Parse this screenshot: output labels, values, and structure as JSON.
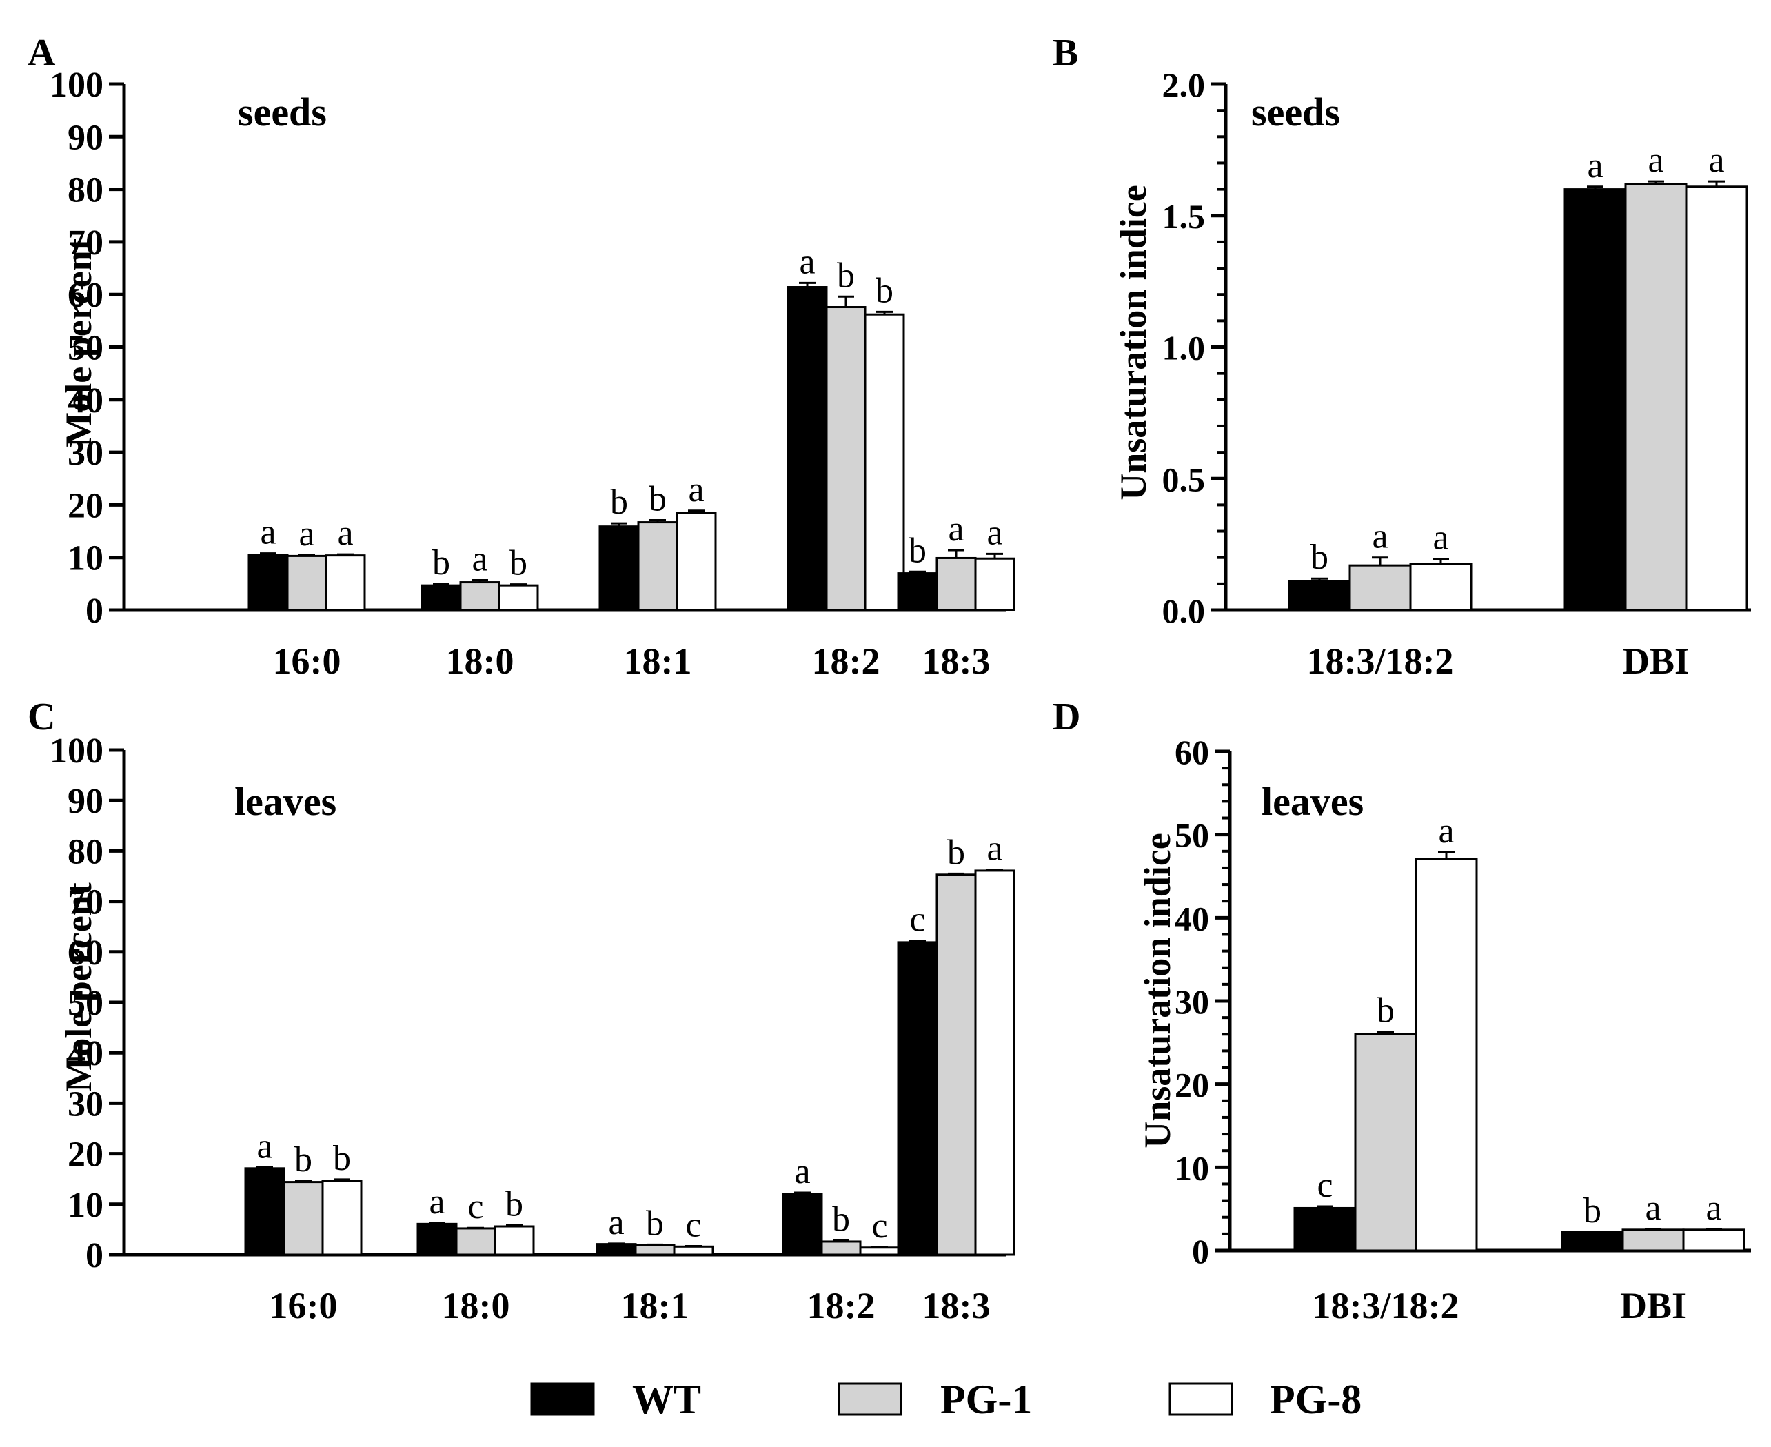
{
  "figure": {
    "legend": [
      {
        "name": "WT",
        "fill": "#000000"
      },
      {
        "name": "PG-1",
        "fill": "#d3d3d3"
      },
      {
        "name": "PG-8",
        "fill": "#ffffff"
      }
    ]
  },
  "chart_data": [
    {
      "type": "bar",
      "panel": "A",
      "title": "seeds",
      "ylabel": "Mole percent",
      "xlabel": "",
      "ylim": [
        0,
        100
      ],
      "yticks": [
        0,
        10,
        20,
        30,
        40,
        50,
        60,
        70,
        80,
        90,
        100
      ],
      "ytick_labels": [
        "0",
        "10",
        "20",
        "30",
        "40",
        "50",
        "60",
        "70",
        "80",
        "90",
        "100"
      ],
      "minor_ticks": 0,
      "categories": [
        "16:0",
        "18:0",
        "18:1",
        "18:2",
        "18:3"
      ],
      "series": [
        {
          "name": "WT",
          "values": [
            10.5,
            4.7,
            15.9,
            61.4,
            7.0
          ],
          "errors": [
            0.3,
            0.3,
            0.6,
            0.8,
            0.3
          ],
          "letters": [
            "a",
            "b",
            "b",
            "a",
            "b"
          ]
        },
        {
          "name": "PG-1",
          "values": [
            10.3,
            5.3,
            16.7,
            57.6,
            9.9
          ],
          "errors": [
            0.2,
            0.4,
            0.4,
            2.0,
            1.5
          ],
          "letters": [
            "a",
            "a",
            "b",
            "b",
            "a"
          ]
        },
        {
          "name": "PG-8",
          "values": [
            10.4,
            4.7,
            18.5,
            56.2,
            9.8
          ],
          "errors": [
            0.2,
            0.2,
            0.4,
            0.5,
            0.9
          ],
          "letters": [
            "a",
            "b",
            "a",
            "b",
            "a"
          ]
        }
      ]
    },
    {
      "type": "bar",
      "panel": "B",
      "title": "seeds",
      "ylabel": "Unsaturation indice",
      "xlabel": "",
      "ylim": [
        0,
        2.0
      ],
      "yticks": [
        0,
        0.5,
        1.0,
        1.5,
        2.0
      ],
      "ytick_labels": [
        "0.0",
        "0.5",
        "1.0",
        "1.5",
        "2.0"
      ],
      "minor_ticks": 4,
      "categories": [
        "18:3/18:2",
        "DBI"
      ],
      "series": [
        {
          "name": "WT",
          "values": [
            0.11,
            1.6
          ],
          "errors": [
            0.01,
            0.01
          ],
          "letters": [
            "b",
            "a"
          ]
        },
        {
          "name": "PG-1",
          "values": [
            0.17,
            1.62
          ],
          "errors": [
            0.03,
            0.01
          ],
          "letters": [
            "a",
            "a"
          ]
        },
        {
          "name": "PG-8",
          "values": [
            0.175,
            1.61
          ],
          "errors": [
            0.02,
            0.02
          ],
          "letters": [
            "a",
            "a"
          ]
        }
      ]
    },
    {
      "type": "bar",
      "panel": "C",
      "title": "leaves",
      "ylabel": "Mole percent",
      "xlabel": "",
      "ylim": [
        0,
        100
      ],
      "yticks": [
        0,
        10,
        20,
        30,
        40,
        50,
        60,
        70,
        80,
        90,
        100
      ],
      "ytick_labels": [
        "0",
        "10",
        "20",
        "30",
        "40",
        "50",
        "60",
        "70",
        "80",
        "90",
        "100"
      ],
      "minor_ticks": 0,
      "categories": [
        "16:0",
        "18:0",
        "18:1",
        "18:2",
        "18:3"
      ],
      "series": [
        {
          "name": "WT",
          "values": [
            17.1,
            6.1,
            2.1,
            12.0,
            61.9
          ],
          "errors": [
            0.2,
            0.2,
            0.1,
            0.3,
            0.3
          ],
          "letters": [
            "a",
            "a",
            "a",
            "a",
            "c"
          ]
        },
        {
          "name": "PG-1",
          "values": [
            14.4,
            5.2,
            1.9,
            2.6,
            75.3
          ],
          "errors": [
            0.2,
            0.1,
            0.1,
            0.2,
            0.2
          ],
          "letters": [
            "b",
            "c",
            "b",
            "b",
            "b"
          ]
        },
        {
          "name": "PG-8",
          "values": [
            14.6,
            5.6,
            1.6,
            1.4,
            76.1
          ],
          "errors": [
            0.3,
            0.2,
            0.1,
            0.1,
            0.2
          ],
          "letters": [
            "b",
            "b",
            "c",
            "c",
            "a"
          ]
        }
      ]
    },
    {
      "type": "bar",
      "panel": "D",
      "title": "leaves",
      "ylabel": "Unsaturation indice",
      "xlabel": "",
      "ylim": [
        0,
        60
      ],
      "yticks": [
        0,
        10,
        20,
        30,
        40,
        50,
        60
      ],
      "ytick_labels": [
        "0",
        "10",
        "20",
        "30",
        "40",
        "50",
        "60"
      ],
      "minor_ticks": 4,
      "categories": [
        "18:3/18:2",
        "DBI"
      ],
      "series": [
        {
          "name": "WT",
          "values": [
            5.1,
            2.2
          ],
          "errors": [
            0.2,
            0.05
          ],
          "letters": [
            "c",
            "b"
          ]
        },
        {
          "name": "PG-1",
          "values": [
            26.0,
            2.5
          ],
          "errors": [
            0.3,
            0.05
          ],
          "letters": [
            "b",
            "a"
          ]
        },
        {
          "name": "PG-8",
          "values": [
            47.1,
            2.5
          ],
          "errors": [
            0.8,
            0.05
          ],
          "letters": [
            "a",
            "a"
          ]
        }
      ]
    }
  ]
}
